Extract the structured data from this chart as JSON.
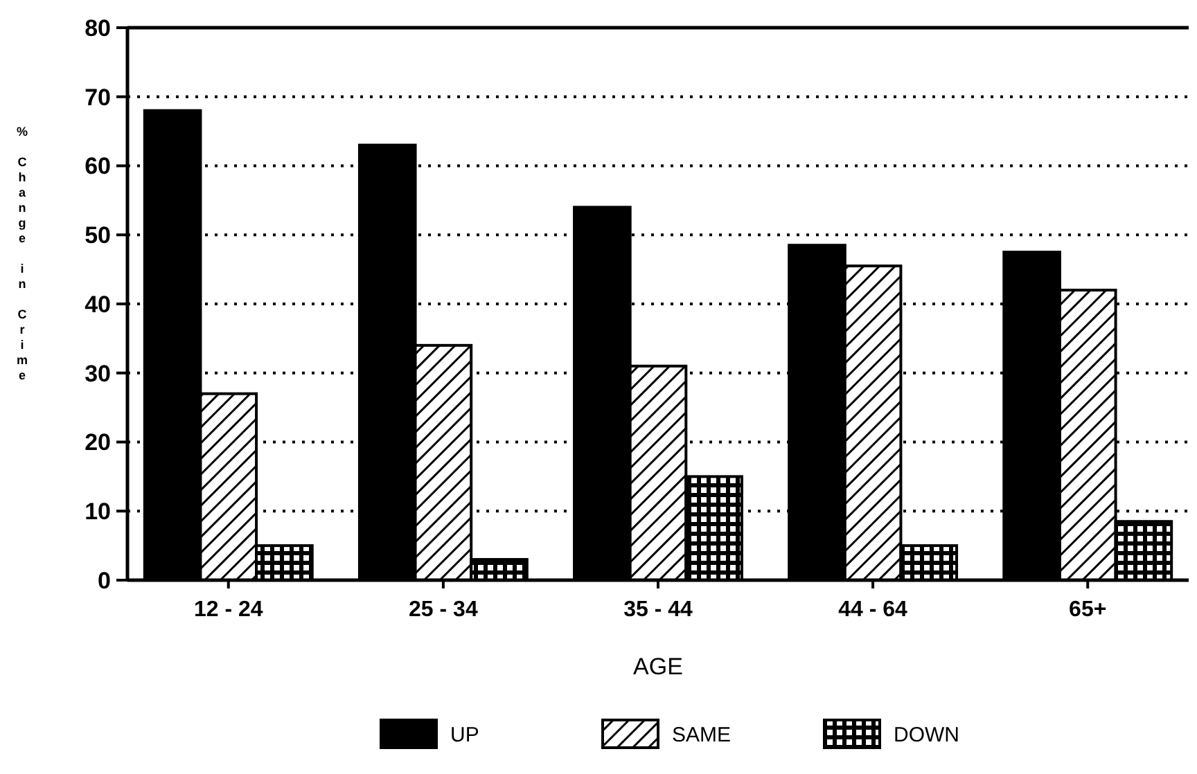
{
  "chart_data": {
    "type": "bar",
    "xlabel": "AGE",
    "ylabel": "% Change in Crime",
    "categories": [
      "12 - 24",
      "25 - 34",
      "35 - 44",
      "44 - 64",
      "65+"
    ],
    "series": [
      {
        "name": "UP",
        "color": "#000000",
        "values": [
          68,
          63,
          54,
          48.5,
          47.5
        ]
      },
      {
        "name": "SAME",
        "color": "#000000",
        "values": [
          27,
          34,
          31,
          45.5,
          42
        ]
      },
      {
        "name": "DOWN",
        "color": "#000000",
        "values": [
          5,
          3,
          15,
          5,
          8.5
        ]
      }
    ],
    "ylim": [
      0,
      80
    ],
    "yticks": [
      0,
      10,
      20,
      30,
      40,
      50,
      60,
      70,
      80
    ],
    "grid": "y",
    "legend": "bottom"
  }
}
